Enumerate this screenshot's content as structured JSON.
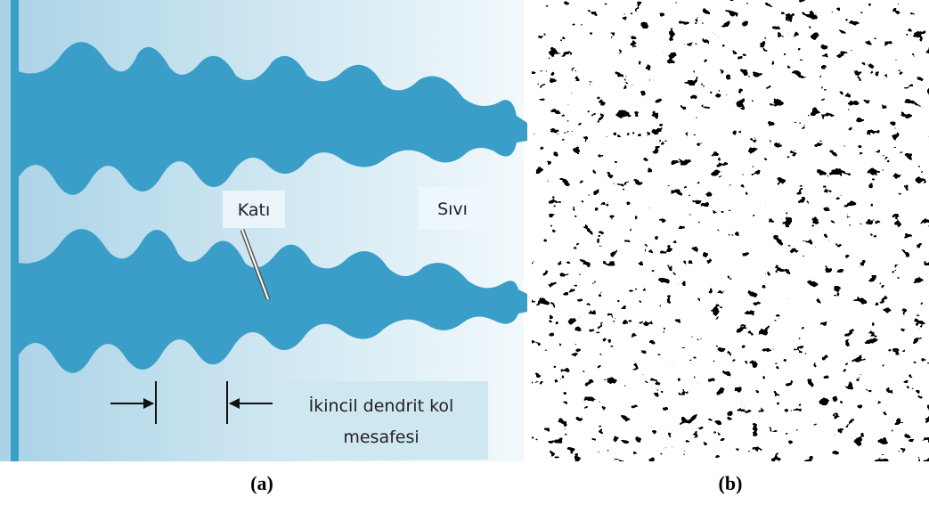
{
  "panel_a": {
    "solid_label": "Katı",
    "liquid_label": "Sıvı",
    "spacing_label_line1": "İkincil dendrit kol",
    "spacing_label_line2": "mesafesi"
  },
  "captions": {
    "a": "(a)",
    "b": "(b)"
  }
}
